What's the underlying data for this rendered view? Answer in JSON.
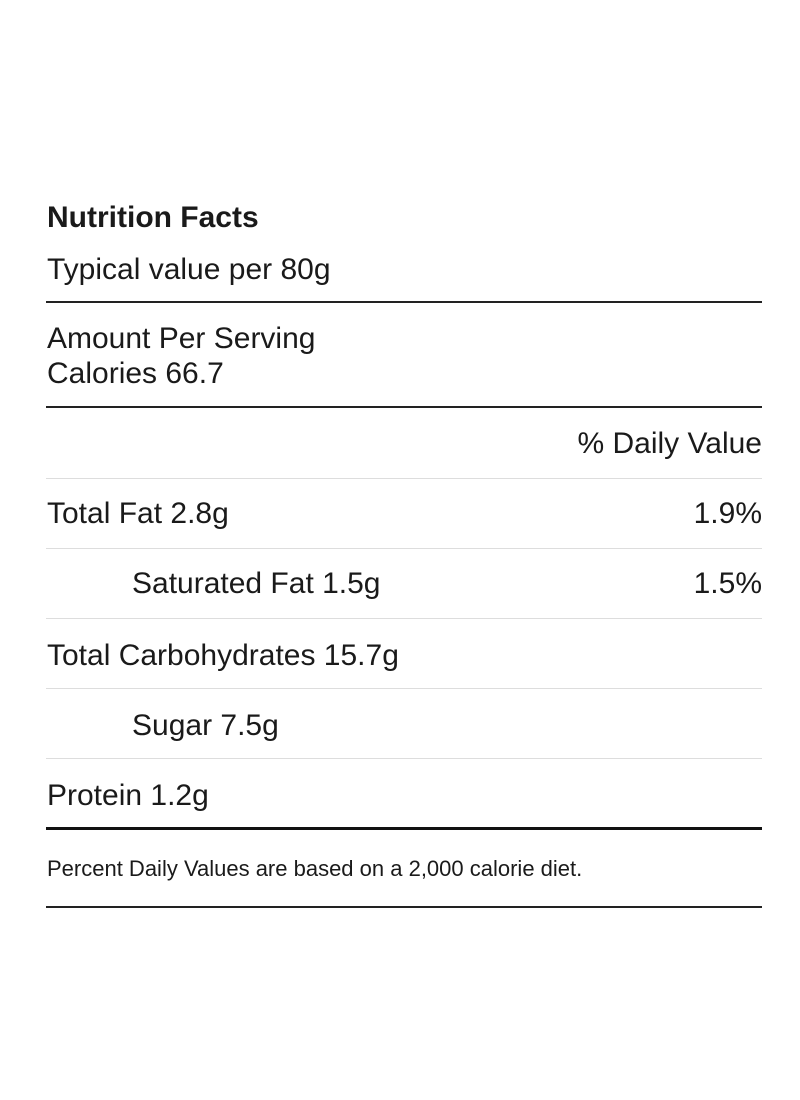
{
  "header": {
    "title": "Nutrition Facts",
    "subtitle": "Typical value per 80g"
  },
  "serving": {
    "label": "Amount Per Serving",
    "calories": "Calories 66.7"
  },
  "table": {
    "column_header": "% Daily Value",
    "rows": [
      {
        "nutrient": "Total Fat 2.8g",
        "daily_value": "1.9%"
      },
      {
        "nutrient": "Saturated Fat 1.5g",
        "daily_value": "1.5%"
      },
      {
        "nutrient": "Total Carbohydrates 15.7g"
      },
      {
        "nutrient": "Sugar 7.5g"
      },
      {
        "nutrient": "Protein 1.2g"
      }
    ]
  },
  "footnote": "Percent Daily Values are based on a 2,000 calorie diet."
}
